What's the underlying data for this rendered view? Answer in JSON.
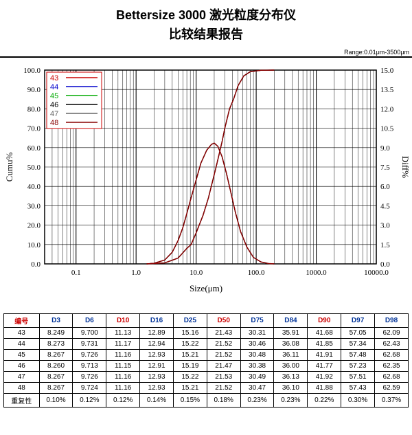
{
  "title_line1": "Bettersize 3000 激光粒度分布仪",
  "title_line2": "比较结果报告",
  "range_text": "Range:0.01μm-3500μm",
  "chart": {
    "type": "line+cumulative",
    "x_axis": {
      "label": "Size(μm)",
      "scale": "log",
      "min": 0.03,
      "max": 10000,
      "tick_labels": [
        "0.1",
        "1.0",
        "10.0",
        "100.0",
        "1000.0",
        "10000.0"
      ],
      "tick_values": [
        0.1,
        1.0,
        10.0,
        100.0,
        1000.0,
        10000.0
      ],
      "minor_ticks_per_decade": [
        2,
        3,
        4,
        5,
        6,
        7,
        8,
        9
      ]
    },
    "y_left": {
      "label": "Cumu%",
      "min": 0,
      "max": 100,
      "step": 10,
      "tick_labels": [
        "0.0",
        "10.0",
        "20.0",
        "30.0",
        "40.0",
        "50.0",
        "60.0",
        "70.0",
        "80.0",
        "90.0",
        "100.0"
      ]
    },
    "y_right": {
      "label": "Diff%",
      "min": 0,
      "max": 15,
      "step": 1.5,
      "tick_labels": [
        "0.0",
        "1.5",
        "3.0",
        "4.5",
        "6.0",
        "7.5",
        "9.0",
        "10.5",
        "12.0",
        "13.5",
        "15.0"
      ]
    },
    "legend": {
      "items": [
        {
          "label": "43",
          "color": "#cc0000"
        },
        {
          "label": "44",
          "color": "#0000cc"
        },
        {
          "label": "45",
          "color": "#00aa00"
        },
        {
          "label": "46",
          "color": "#000000"
        },
        {
          "label": "47",
          "color": "#666666"
        },
        {
          "label": "48",
          "color": "#880000"
        }
      ],
      "border_color": "#cc0000",
      "bg": "#ffffff"
    },
    "styling": {
      "grid_color": "#000000",
      "grid_width": 0.6,
      "axis_label_font": "Times New Roman",
      "axis_label_fontsize": 13,
      "tick_fontsize": 11
    },
    "diff_curve": {
      "color_main": "#880000",
      "points": [
        [
          1.5,
          0
        ],
        [
          2,
          0.05
        ],
        [
          3,
          0.3
        ],
        [
          4,
          0.9
        ],
        [
          5,
          1.8
        ],
        [
          6,
          2.8
        ],
        [
          7,
          3.9
        ],
        [
          8,
          4.9
        ],
        [
          10,
          6.5
        ],
        [
          12,
          7.8
        ],
        [
          15,
          8.8
        ],
        [
          18,
          9.25
        ],
        [
          20,
          9.35
        ],
        [
          23,
          9.1
        ],
        [
          27,
          8.3
        ],
        [
          32,
          7.0
        ],
        [
          38,
          5.5
        ],
        [
          45,
          4.0
        ],
        [
          55,
          2.5
        ],
        [
          70,
          1.3
        ],
        [
          90,
          0.5
        ],
        [
          120,
          0.15
        ],
        [
          160,
          0.03
        ],
        [
          200,
          0
        ]
      ]
    },
    "cumu_curve": {
      "color_main": "#880000",
      "points": [
        [
          1.5,
          0
        ],
        [
          3,
          0.5
        ],
        [
          5,
          3
        ],
        [
          7,
          8
        ],
        [
          8.25,
          10
        ],
        [
          10,
          16
        ],
        [
          13,
          25
        ],
        [
          16,
          34
        ],
        [
          21.5,
          50
        ],
        [
          27,
          63
        ],
        [
          30,
          70
        ],
        [
          36,
          80
        ],
        [
          42,
          85
        ],
        [
          50,
          92
        ],
        [
          57,
          95
        ],
        [
          62,
          97
        ],
        [
          80,
          99.2
        ],
        [
          120,
          99.9
        ],
        [
          200,
          100
        ]
      ]
    }
  },
  "table": {
    "headers": [
      {
        "label": "编号",
        "red": true
      },
      {
        "label": "D3",
        "red": false
      },
      {
        "label": "D6",
        "red": false
      },
      {
        "label": "D10",
        "red": true
      },
      {
        "label": "D16",
        "red": false
      },
      {
        "label": "D25",
        "red": false
      },
      {
        "label": "D50",
        "red": true
      },
      {
        "label": "D75",
        "red": false
      },
      {
        "label": "D84",
        "red": false
      },
      {
        "label": "D90",
        "red": true
      },
      {
        "label": "D97",
        "red": false
      },
      {
        "label": "D98",
        "red": false
      }
    ],
    "rows": [
      [
        "43",
        "8.249",
        "9.700",
        "11.13",
        "12.89",
        "15.16",
        "21.43",
        "30.31",
        "35.91",
        "41.68",
        "57.05",
        "62.09"
      ],
      [
        "44",
        "8.273",
        "9.731",
        "11.17",
        "12.94",
        "15.22",
        "21.52",
        "30.46",
        "36.08",
        "41.85",
        "57.34",
        "62.43"
      ],
      [
        "45",
        "8.267",
        "9.726",
        "11.16",
        "12.93",
        "15.21",
        "21.52",
        "30.48",
        "36.11",
        "41.91",
        "57.48",
        "62.68"
      ],
      [
        "46",
        "8.260",
        "9.713",
        "11.15",
        "12.91",
        "15.19",
        "21.47",
        "30.38",
        "36.00",
        "41.77",
        "57.23",
        "62.35"
      ],
      [
        "47",
        "8.267",
        "9.726",
        "11.16",
        "12.93",
        "15.22",
        "21.53",
        "30.49",
        "36.13",
        "41.92",
        "57.51",
        "62.68"
      ],
      [
        "48",
        "8.267",
        "9.724",
        "11.16",
        "12.93",
        "15.21",
        "21.52",
        "30.47",
        "36.10",
        "41.88",
        "57.43",
        "62.59"
      ],
      [
        "重复性",
        "0.10%",
        "0.12%",
        "0.12%",
        "0.14%",
        "0.15%",
        "0.18%",
        "0.23%",
        "0.23%",
        "0.22%",
        "0.30%",
        "0.37%"
      ]
    ]
  }
}
